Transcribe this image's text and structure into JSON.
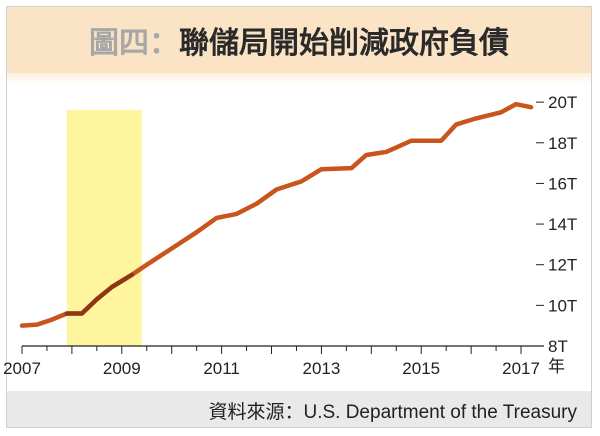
{
  "title": {
    "prefix": "圖四：",
    "main": "聯儲局開始削減政府負債"
  },
  "source": "資料來源：U.S. Department of the Treasury",
  "colors": {
    "line": "#c9541c",
    "line_in_band": "#7a2d10",
    "band": "#fff59e",
    "title_bg": "#fbe3c5"
  },
  "chart_data": {
    "type": "line",
    "x_unit": "年",
    "xlim": [
      2007,
      2017.3
    ],
    "ylim": [
      8,
      20.4
    ],
    "x_ticks": [
      2007,
      2009,
      2011,
      2013,
      2015,
      2017
    ],
    "x_tick_labels": [
      "2007",
      "2009",
      "2011",
      "2013",
      "2015",
      "2017"
    ],
    "y_ticks": [
      8,
      10,
      12,
      14,
      16,
      18,
      20
    ],
    "y_tick_labels": [
      "8T",
      "10T",
      "12T",
      "14T",
      "16T",
      "18T",
      "20T"
    ],
    "highlight": {
      "x_start": 2007.9,
      "x_end": 2009.4
    },
    "series": [
      {
        "x": [
          2007.0,
          2007.3,
          2007.6,
          2007.9,
          2008.2,
          2008.5,
          2008.8,
          2009.2,
          2009.5,
          2010.0,
          2010.5,
          2010.9,
          2011.3,
          2011.7,
          2012.1,
          2012.6,
          2013.0,
          2013.6,
          2013.9,
          2014.3,
          2014.8,
          2015.4,
          2015.7,
          2016.1,
          2016.6,
          2016.9,
          2017.2
        ],
        "y": [
          9.0,
          9.05,
          9.3,
          9.6,
          9.6,
          10.3,
          10.9,
          11.5,
          12.0,
          12.8,
          13.6,
          14.3,
          14.5,
          15.0,
          15.7,
          16.1,
          16.7,
          16.75,
          17.4,
          17.55,
          18.1,
          18.1,
          18.9,
          19.2,
          19.5,
          19.9,
          19.75
        ]
      }
    ]
  }
}
